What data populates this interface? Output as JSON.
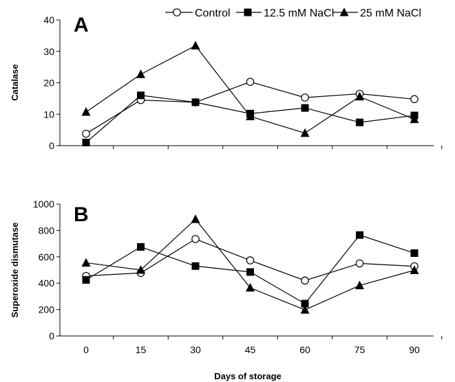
{
  "legend": [
    "Control",
    "12.5 mM NaCl",
    "25 mM NaCl"
  ],
  "chart_data": [
    {
      "type": "line",
      "panel": "A",
      "ylabel": "Catalase",
      "xlabel": "",
      "x": [
        0,
        15,
        30,
        45,
        60,
        75,
        90
      ],
      "ylim": [
        0,
        40
      ],
      "yticks": [
        0,
        10,
        20,
        30,
        40
      ],
      "series": [
        {
          "name": "Control",
          "marker": "open-circle",
          "values": [
            3.8,
            14.5,
            13.8,
            20.3,
            15.3,
            16.5,
            14.8
          ]
        },
        {
          "name": "12.5 mM NaCl",
          "marker": "filled-square",
          "values": [
            1.0,
            16.0,
            13.8,
            10.2,
            12.0,
            7.4,
            9.6
          ]
        },
        {
          "name": "25 mM NaCl",
          "marker": "filled-triangle",
          "values": [
            10.7,
            22.7,
            31.8,
            9.3,
            4.0,
            15.6,
            8.4
          ]
        }
      ]
    },
    {
      "type": "line",
      "panel": "B",
      "ylabel": "Superoxide dismutase",
      "xlabel": "Days of storage",
      "x": [
        0,
        15,
        30,
        45,
        60,
        75,
        90
      ],
      "ylim": [
        0,
        1000
      ],
      "yticks": [
        0,
        200,
        400,
        600,
        800,
        1000
      ],
      "series": [
        {
          "name": "Control",
          "marker": "open-circle",
          "values": [
            455,
            478,
            735,
            573,
            420,
            550,
            528
          ]
        },
        {
          "name": "12.5 mM NaCl",
          "marker": "filled-square",
          "values": [
            425,
            675,
            530,
            485,
            245,
            765,
            628
          ]
        },
        {
          "name": "25 mM NaCl",
          "marker": "filled-triangle",
          "values": [
            555,
            500,
            885,
            365,
            198,
            383,
            498
          ]
        }
      ]
    }
  ]
}
